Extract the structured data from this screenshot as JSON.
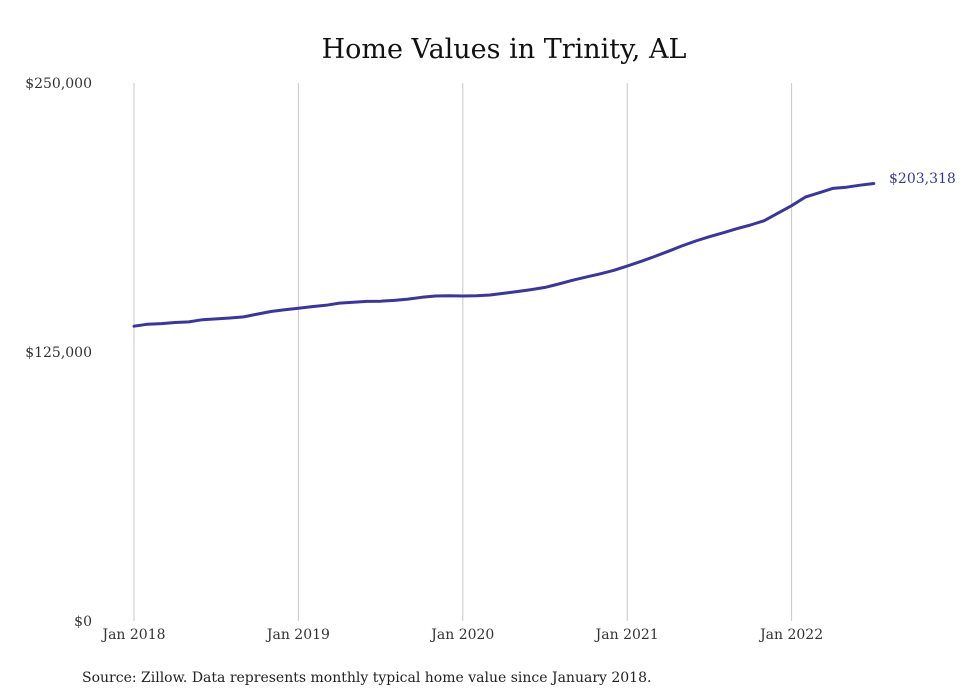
{
  "chart_data": {
    "type": "line",
    "title": "Home Values in Trinity, AL",
    "xlabel": "",
    "ylabel": "",
    "ylim": [
      0,
      250000
    ],
    "y_ticks": [
      {
        "value": 0,
        "label": "$0"
      },
      {
        "value": 125000,
        "label": "$125,000"
      },
      {
        "value": 250000,
        "label": "$250,000"
      }
    ],
    "x_ticks": [
      {
        "value": "2018-01",
        "label": "Jan 2018"
      },
      {
        "value": "2019-01",
        "label": "Jan 2019"
      },
      {
        "value": "2020-01",
        "label": "Jan 2020"
      },
      {
        "value": "2021-01",
        "label": "Jan 2021"
      },
      {
        "value": "2022-01",
        "label": "Jan 2022"
      }
    ],
    "grid": {
      "vertical": true,
      "horizontal": false
    },
    "color": "#3b35a0",
    "end_label": "$203,318",
    "x": [
      "2018-01",
      "2018-02",
      "2018-03",
      "2018-04",
      "2018-05",
      "2018-06",
      "2018-07",
      "2018-08",
      "2018-09",
      "2018-10",
      "2018-11",
      "2018-12",
      "2019-01",
      "2019-02",
      "2019-03",
      "2019-04",
      "2019-05",
      "2019-06",
      "2019-07",
      "2019-08",
      "2019-09",
      "2019-10",
      "2019-11",
      "2019-12",
      "2020-01",
      "2020-02",
      "2020-03",
      "2020-04",
      "2020-05",
      "2020-06",
      "2020-07",
      "2020-08",
      "2020-09",
      "2020-10",
      "2020-11",
      "2020-12",
      "2021-01",
      "2021-02",
      "2021-03",
      "2021-04",
      "2021-05",
      "2021-06",
      "2021-07",
      "2021-08",
      "2021-09",
      "2021-10",
      "2021-11",
      "2021-12",
      "2022-01",
      "2022-02",
      "2022-03",
      "2022-04",
      "2022-05",
      "2022-06",
      "2022-07"
    ],
    "series": [
      {
        "values": [
          137000,
          137900,
          138200,
          138700,
          139000,
          140000,
          140400,
          140800,
          141300,
          142600,
          143800,
          144600,
          145300,
          146100,
          146700,
          147700,
          148100,
          148500,
          148600,
          149000,
          149600,
          150400,
          151000,
          151100,
          151000,
          151100,
          151500,
          152300,
          153100,
          154000,
          155000,
          156600,
          158300,
          159800,
          161300,
          162900,
          164900,
          167100,
          169400,
          171800,
          174300,
          176600,
          178600,
          180400,
          182300,
          184000,
          186000,
          189500,
          193000,
          197000,
          199000,
          201000,
          201600,
          202500,
          203318
        ]
      }
    ]
  },
  "footer": {
    "source": "Source: Zillow. Data represents monthly typical home value since January 2018."
  }
}
